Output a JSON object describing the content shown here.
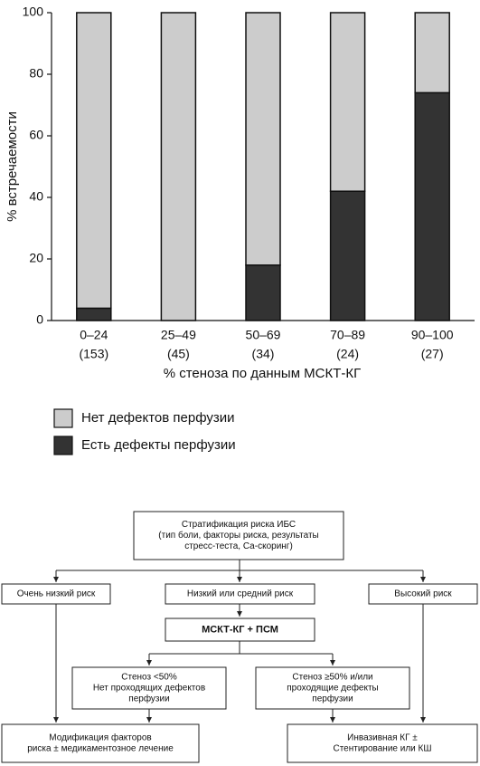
{
  "chart_data": {
    "type": "stacked_bar",
    "ylabel": "% встречаемости",
    "xlabel": "% стеноза по данным МСКТ-КГ",
    "categories": [
      "0–24",
      "25–49",
      "50–69",
      "70–89",
      "90–100"
    ],
    "category_counts": [
      "(153)",
      "(45)",
      "(34)",
      "(24)",
      "(27)"
    ],
    "series": [
      {
        "name": "Есть дефекты перфузии",
        "color": "#333333",
        "values": [
          4,
          0,
          18,
          42,
          74
        ]
      },
      {
        "name": "Нет дефектов перфузии",
        "color": "#cccccc",
        "values": [
          96,
          100,
          82,
          58,
          26
        ]
      }
    ],
    "ylim": [
      0,
      100
    ],
    "yticks": [
      0,
      20,
      40,
      60,
      80,
      100
    ],
    "grid": false
  },
  "flowchart": {
    "nodes": [
      {
        "lines": [
          "Стратификация риска ИБС",
          "(тип боли, факторы риска, результаты",
          "стресс-теста, Са-скоринг)"
        ]
      },
      {
        "lines": [
          "Очень низкий риск"
        ]
      },
      {
        "lines": [
          "Низкий или средний риск"
        ]
      },
      {
        "lines": [
          "Высокий риск"
        ]
      },
      {
        "lines": [
          "МСКТ-КГ + ПСМ"
        ]
      },
      {
        "lines": [
          "Стеноз <50%",
          "Нет проходящих дефектов",
          "перфузии"
        ]
      },
      {
        "lines": [
          "Стеноз ≥50% и/или",
          "проходящие дефекты",
          "перфузии"
        ]
      },
      {
        "lines": [
          "Модификация факторов",
          "риска ± медикаментозное лечение"
        ]
      },
      {
        "lines": [
          "Инвазивная КГ ±",
          "Стентирование или КШ"
        ]
      }
    ]
  }
}
